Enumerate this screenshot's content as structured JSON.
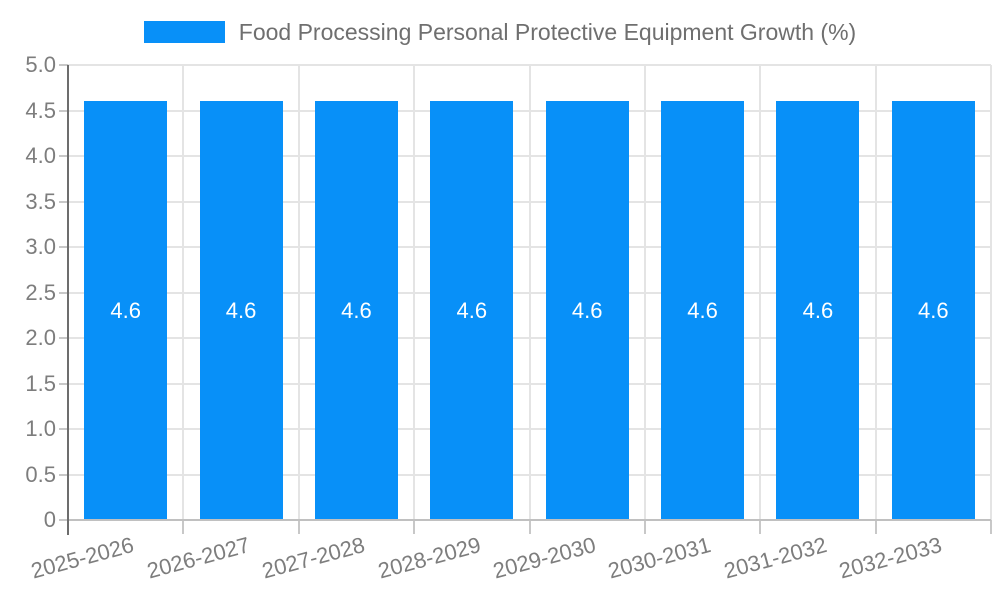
{
  "chart_data": {
    "type": "bar",
    "title": "Food Processing Personal Protective Equipment Growth (%)",
    "legend": {
      "label": "Food Processing Personal Protective Equipment Growth (%)",
      "position": "top"
    },
    "categories": [
      "2025-2026",
      "2026-2027",
      "2027-2028",
      "2028-2029",
      "2029-2030",
      "2030-2031",
      "2031-2032",
      "2032-2033"
    ],
    "series": [
      {
        "name": "Food Processing Personal Protective Equipment Growth (%)",
        "values": [
          4.6,
          4.6,
          4.6,
          4.6,
          4.6,
          4.6,
          4.6,
          4.6
        ]
      }
    ],
    "bar_value_labels": [
      "4.6",
      "4.6",
      "4.6",
      "4.6",
      "4.6",
      "4.6",
      "4.6",
      "4.6"
    ],
    "xlabel": "",
    "ylabel": "",
    "ylim": [
      0,
      5
    ],
    "yticks": [
      {
        "value": 0,
        "label": "0"
      },
      {
        "value": 0.5,
        "label": "0.5"
      },
      {
        "value": 1,
        "label": "1.0"
      },
      {
        "value": 1.5,
        "label": "1.5"
      },
      {
        "value": 2,
        "label": "2.0"
      },
      {
        "value": 2.5,
        "label": "2.5"
      },
      {
        "value": 3,
        "label": "3.0"
      },
      {
        "value": 3.5,
        "label": "3.5"
      },
      {
        "value": 4,
        "label": "4.0"
      },
      {
        "value": 4.5,
        "label": "4.5"
      },
      {
        "value": 5,
        "label": "5.0"
      }
    ],
    "grid": true,
    "x_label_rotation_deg": -15,
    "colors": {
      "bar": "#0890f8",
      "grid": "#e4e4e4",
      "y_axis_line": "#6d6d6d",
      "x_axis_line": "#c0c0c0",
      "tick_mark": "#c8c8c8",
      "tick_text": "#7d7d7d",
      "legend_text": "#6f6f6f",
      "value_label_text": "#ffffff",
      "background": "#ffffff"
    }
  }
}
